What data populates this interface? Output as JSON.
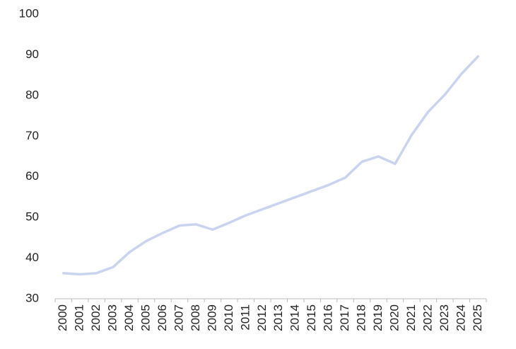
{
  "chart_data": {
    "type": "line",
    "categories": [
      "2000",
      "2001",
      "2002",
      "2003",
      "2004",
      "2005",
      "2006",
      "2007",
      "2008",
      "2009",
      "2010",
      "2011",
      "2012",
      "2013",
      "2014",
      "2015",
      "2016",
      "2017",
      "2018",
      "2019",
      "2020",
      "2021",
      "2022",
      "2023",
      "2024",
      "2025"
    ],
    "series": [
      {
        "color": "#cad4ef",
        "values": [
          36.3,
          36.0,
          36.3,
          37.8,
          41.5,
          44.2,
          46.2,
          48.0,
          48.3,
          47.0,
          48.7,
          50.5,
          52.0,
          53.5,
          55.0,
          56.5,
          58.0,
          59.8,
          63.7,
          65.0,
          63.2,
          70.3,
          76.0,
          80.2,
          85.3,
          89.6
        ]
      }
    ],
    "ylim": [
      30,
      100
    ],
    "yticks": [
      30,
      40,
      50,
      60,
      70,
      80,
      90,
      100
    ],
    "grid": false
  }
}
